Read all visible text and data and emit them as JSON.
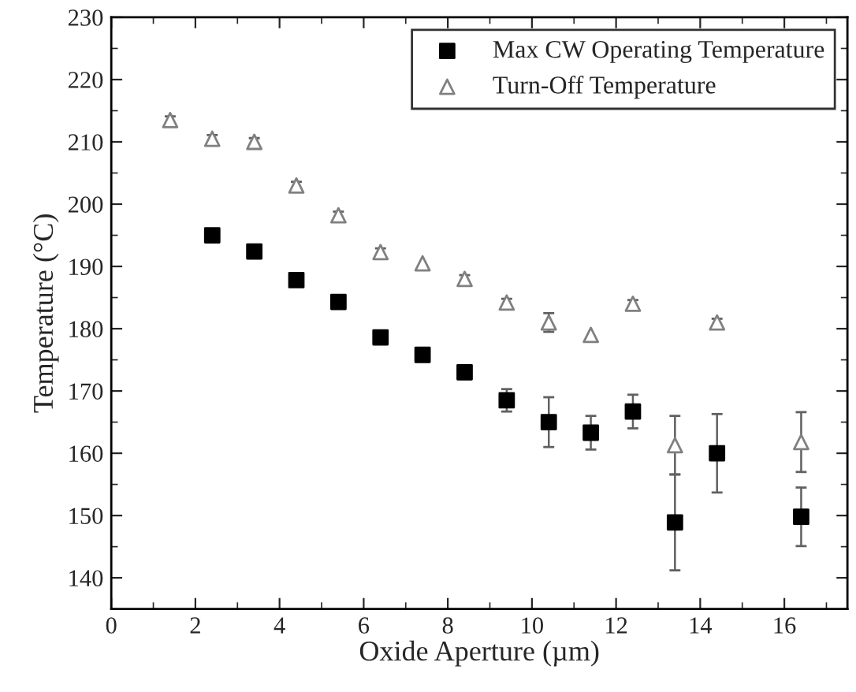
{
  "chart_data": {
    "type": "scatter",
    "xlabel": "Oxide Aperture (µm)",
    "ylabel": "Temperature (°C)",
    "xlim": [
      0,
      17.5
    ],
    "xticks": [
      0,
      2,
      4,
      6,
      8,
      10,
      12,
      14,
      16
    ],
    "ylim": [
      135,
      230
    ],
    "yticks": [
      140,
      150,
      160,
      170,
      180,
      190,
      200,
      210,
      220,
      230
    ],
    "legend": "top right",
    "grid": false,
    "series": [
      {
        "name": "Max CW Operating Temperature",
        "color": "#000000",
        "marker": "square",
        "x": [
          2.4,
          3.4,
          4.4,
          5.4,
          6.4,
          7.4,
          8.4,
          9.4,
          10.4,
          11.4,
          12.4,
          13.4,
          14.4,
          16.4
        ],
        "values": [
          195,
          192.4,
          187.8,
          184.3,
          178.6,
          175.8,
          173,
          168.5,
          165,
          163.3,
          166.7,
          148.9,
          160,
          149.8
        ],
        "errors": [
          null,
          null,
          null,
          null,
          null,
          null,
          null,
          1.8,
          4,
          2.7,
          2.7,
          7.7,
          6.3,
          4.7
        ]
      },
      {
        "name": "Turn-Off Temperature",
        "color": "#808080",
        "marker": "triangle",
        "x": [
          1.4,
          2.4,
          3.4,
          4.4,
          5.4,
          6.4,
          7.4,
          8.4,
          9.4,
          10.4,
          11.4,
          12.4,
          13.4,
          14.4,
          16.4
        ],
        "values": [
          213.5,
          210.5,
          210,
          203,
          198.2,
          192.3,
          190.5,
          188,
          184.2,
          181,
          179,
          184,
          161.3,
          181,
          161.8
        ],
        "errors": [
          0.6,
          0.6,
          0.6,
          0.6,
          0.6,
          0.6,
          null,
          0.6,
          0.6,
          1.5,
          null,
          0.6,
          4.7,
          0.6,
          4.8
        ]
      }
    ]
  }
}
